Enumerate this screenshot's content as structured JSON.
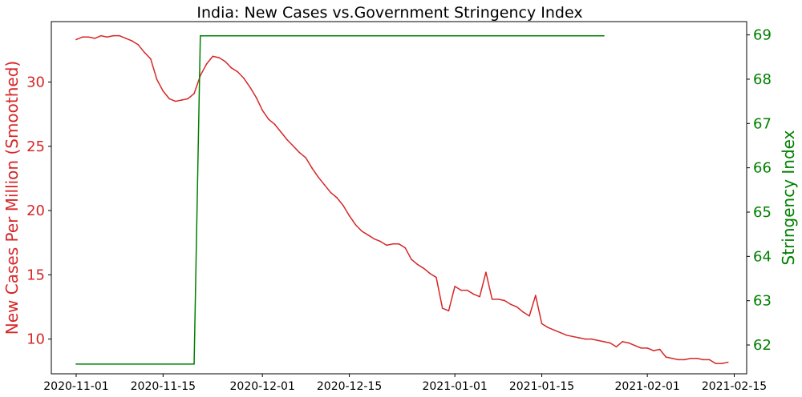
{
  "chart_data": {
    "type": "line",
    "title": "India: New Cases vs.Government Stringency Index",
    "x_axis": {
      "type": "date",
      "range": [
        "2020-10-28",
        "2021-02-17"
      ],
      "ticks": [
        "2020-11-01",
        "2020-11-15",
        "2020-12-01",
        "2020-12-15",
        "2021-01-01",
        "2021-01-15",
        "2021-02-01",
        "2021-02-15"
      ],
      "label": ""
    },
    "y_left": {
      "label": "New Cases Per Million (Smoothed)",
      "ylim": [
        7.3,
        34.7
      ],
      "ticks": [
        10,
        15,
        20,
        25,
        30
      ],
      "color": "#d62728"
    },
    "y_right": {
      "label": "Stringency Index",
      "ylim": [
        61.35,
        69.3
      ],
      "ticks": [
        62,
        63,
        64,
        65,
        66,
        67,
        68,
        69
      ],
      "color": "#008000"
    },
    "grid": false,
    "series": [
      {
        "axis": "left",
        "color": "#d62728",
        "points": [
          [
            "2020-11-01",
            33.3
          ],
          [
            "2020-11-02",
            33.5
          ],
          [
            "2020-11-03",
            33.5
          ],
          [
            "2020-11-04",
            33.4
          ],
          [
            "2020-11-05",
            33.6
          ],
          [
            "2020-11-06",
            33.5
          ],
          [
            "2020-11-07",
            33.6
          ],
          [
            "2020-11-08",
            33.6
          ],
          [
            "2020-11-09",
            33.4
          ],
          [
            "2020-11-10",
            33.2
          ],
          [
            "2020-11-11",
            32.9
          ],
          [
            "2020-11-12",
            32.3
          ],
          [
            "2020-11-13",
            31.8
          ],
          [
            "2020-11-14",
            30.2
          ],
          [
            "2020-11-15",
            29.3
          ],
          [
            "2020-11-16",
            28.7
          ],
          [
            "2020-11-17",
            28.5
          ],
          [
            "2020-11-18",
            28.6
          ],
          [
            "2020-11-19",
            28.7
          ],
          [
            "2020-11-20",
            29.1
          ],
          [
            "2020-11-21",
            30.5
          ],
          [
            "2020-11-22",
            31.4
          ],
          [
            "2020-11-23",
            32.0
          ],
          [
            "2020-11-24",
            31.9
          ],
          [
            "2020-11-25",
            31.6
          ],
          [
            "2020-11-26",
            31.1
          ],
          [
            "2020-11-27",
            30.8
          ],
          [
            "2020-11-28",
            30.3
          ],
          [
            "2020-11-29",
            29.6
          ],
          [
            "2020-11-30",
            28.8
          ],
          [
            "2020-12-01",
            27.8
          ],
          [
            "2020-12-02",
            27.1
          ],
          [
            "2020-12-03",
            26.7
          ],
          [
            "2020-12-04",
            26.1
          ],
          [
            "2020-12-05",
            25.5
          ],
          [
            "2020-12-06",
            25.0
          ],
          [
            "2020-12-07",
            24.5
          ],
          [
            "2020-12-08",
            24.1
          ],
          [
            "2020-12-09",
            23.3
          ],
          [
            "2020-12-10",
            22.6
          ],
          [
            "2020-12-11",
            22.0
          ],
          [
            "2020-12-12",
            21.4
          ],
          [
            "2020-12-13",
            21.0
          ],
          [
            "2020-12-14",
            20.4
          ],
          [
            "2020-12-15",
            19.6
          ],
          [
            "2020-12-16",
            18.9
          ],
          [
            "2020-12-17",
            18.4
          ],
          [
            "2020-12-18",
            18.1
          ],
          [
            "2020-12-19",
            17.8
          ],
          [
            "2020-12-20",
            17.6
          ],
          [
            "2020-12-21",
            17.3
          ],
          [
            "2020-12-22",
            17.4
          ],
          [
            "2020-12-23",
            17.4
          ],
          [
            "2020-12-24",
            17.1
          ],
          [
            "2020-12-25",
            16.2
          ],
          [
            "2020-12-26",
            15.8
          ],
          [
            "2020-12-27",
            15.5
          ],
          [
            "2020-12-28",
            15.1
          ],
          [
            "2020-12-29",
            14.8
          ],
          [
            "2020-12-30",
            12.4
          ],
          [
            "2020-12-31",
            12.2
          ],
          [
            "2021-01-01",
            14.1
          ],
          [
            "2021-01-02",
            13.8
          ],
          [
            "2021-01-03",
            13.8
          ],
          [
            "2021-01-04",
            13.5
          ],
          [
            "2021-01-05",
            13.3
          ],
          [
            "2021-01-06",
            15.2
          ],
          [
            "2021-01-07",
            13.1
          ],
          [
            "2021-01-08",
            13.1
          ],
          [
            "2021-01-09",
            13.0
          ],
          [
            "2021-01-10",
            12.7
          ],
          [
            "2021-01-11",
            12.5
          ],
          [
            "2021-01-12",
            12.1
          ],
          [
            "2021-01-13",
            11.8
          ],
          [
            "2021-01-14",
            13.4
          ],
          [
            "2021-01-15",
            11.2
          ],
          [
            "2021-01-16",
            10.9
          ],
          [
            "2021-01-17",
            10.7
          ],
          [
            "2021-01-18",
            10.5
          ],
          [
            "2021-01-19",
            10.3
          ],
          [
            "2021-01-20",
            10.2
          ],
          [
            "2021-01-21",
            10.1
          ],
          [
            "2021-01-22",
            10.0
          ],
          [
            "2021-01-23",
            10.0
          ],
          [
            "2021-01-24",
            9.9
          ],
          [
            "2021-01-25",
            9.8
          ],
          [
            "2021-01-26",
            9.7
          ],
          [
            "2021-01-27",
            9.4
          ],
          [
            "2021-01-28",
            9.8
          ],
          [
            "2021-01-29",
            9.7
          ],
          [
            "2021-01-30",
            9.5
          ],
          [
            "2021-01-31",
            9.3
          ],
          [
            "2021-02-01",
            9.3
          ],
          [
            "2021-02-02",
            9.1
          ],
          [
            "2021-02-03",
            9.2
          ],
          [
            "2021-02-04",
            8.6
          ],
          [
            "2021-02-05",
            8.5
          ],
          [
            "2021-02-06",
            8.4
          ],
          [
            "2021-02-07",
            8.4
          ],
          [
            "2021-02-08",
            8.5
          ],
          [
            "2021-02-09",
            8.5
          ],
          [
            "2021-02-10",
            8.4
          ],
          [
            "2021-02-11",
            8.4
          ],
          [
            "2021-02-12",
            8.1
          ],
          [
            "2021-02-13",
            8.1
          ],
          [
            "2021-02-14",
            8.2
          ]
        ]
      },
      {
        "axis": "right",
        "color": "#008000",
        "points": [
          [
            "2020-11-01",
            61.57
          ],
          [
            "2020-11-20",
            61.57
          ],
          [
            "2020-11-21",
            68.98
          ],
          [
            "2021-01-25",
            68.98
          ]
        ]
      }
    ]
  }
}
